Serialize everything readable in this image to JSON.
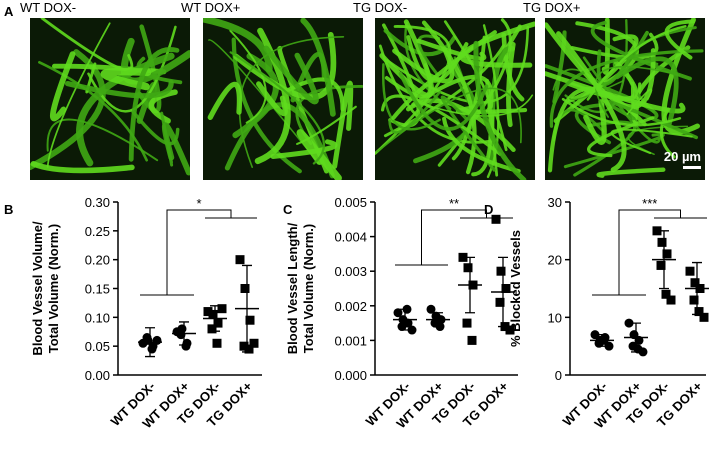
{
  "panel_a": {
    "label": "A",
    "images": [
      "WT DOX-",
      "WT DOX+",
      "TG DOX-",
      "TG DOX+"
    ],
    "scale_bar": "20 µm"
  },
  "chart_data": [
    {
      "type": "dot",
      "panel": "B",
      "ylabel": [
        "Blood Vessel Volume/",
        "Total Volume (Norm.)"
      ],
      "categories": [
        "WT DOX-",
        "WT DOX+",
        "TG DOX-",
        "TG DOX+"
      ],
      "markers": [
        "circle",
        "circle",
        "square",
        "square"
      ],
      "color": "#000000",
      "points": [
        [
          0.055,
          0.06,
          0.05,
          0.065,
          0.045,
          0.06
        ],
        [
          0.075,
          0.08,
          0.055,
          0.07,
          0.05
        ],
        [
          0.11,
          0.105,
          0.09,
          0.08,
          0.055,
          0.115
        ],
        [
          0.2,
          0.15,
          0.095,
          0.05,
          0.045,
          0.055
        ]
      ],
      "mean": [
        0.057,
        0.072,
        0.098,
        0.115
      ],
      "sd": [
        0.025,
        0.02,
        0.022,
        0.075
      ],
      "ylim": [
        0,
        0.3
      ],
      "yticks": [
        {
          "value": 0,
          "label": "0.00"
        },
        0.05,
        {
          "value": 0.1,
          "label": "0.10"
        },
        0.15,
        {
          "value": 0.2,
          "label": "0.20"
        },
        0.25,
        {
          "value": 0.3,
          "label": "0.30"
        }
      ],
      "annotation": "*"
    },
    {
      "type": "dot",
      "panel": "C",
      "ylabel": [
        "Blood Vessel Length/",
        "Total Volume (Norm.)"
      ],
      "categories": [
        "WT DOX-",
        "WT DOX+",
        "TG DOX-",
        "TG DOX+"
      ],
      "markers": [
        "circle",
        "circle",
        "square",
        "square"
      ],
      "color": "#000000",
      "points": [
        [
          0.0018,
          0.0016,
          0.0015,
          0.0014,
          0.0019,
          0.0013
        ],
        [
          0.0019,
          0.0017,
          0.0016,
          0.0015,
          0.0014
        ],
        [
          0.0034,
          0.0031,
          0.0026,
          0.0015,
          0.001
        ],
        [
          0.0045,
          0.003,
          0.0025,
          0.0021,
          0.0014,
          0.0013
        ]
      ],
      "mean": [
        0.0016,
        0.0016,
        0.0026,
        0.0024
      ],
      "sd": [
        0.0003,
        0.0002,
        0.0008,
        0.001
      ],
      "ylim": [
        0,
        0.005
      ],
      "yticks": [
        {
          "value": 0,
          "label": "0.000"
        },
        0.001,
        0.002,
        0.003,
        0.004,
        0.005
      ],
      "annotation": "**"
    },
    {
      "type": "dot",
      "panel": "D",
      "ylabel": [
        "% Blocked  Vessels"
      ],
      "categories": [
        "WT DOX-",
        "WT DOX+",
        "TG DOX-",
        "TG DOX+"
      ],
      "markers": [
        "circle",
        "circle",
        "square",
        "square"
      ],
      "color": "#000000",
      "points": [
        [
          7,
          6,
          6.5,
          5.5,
          6,
          5
        ],
        [
          9,
          7,
          6,
          5,
          4.5,
          4
        ],
        [
          25,
          23,
          21,
          19,
          14,
          13
        ],
        [
          18,
          16,
          15,
          13,
          11,
          10
        ]
      ],
      "mean": [
        6,
        6.5,
        20,
        15
      ],
      "sd": [
        1,
        2.5,
        5,
        4.5
      ],
      "ylim": [
        0,
        30
      ],
      "yticks": [
        0,
        10,
        20,
        30
      ],
      "annotation": "***"
    }
  ]
}
